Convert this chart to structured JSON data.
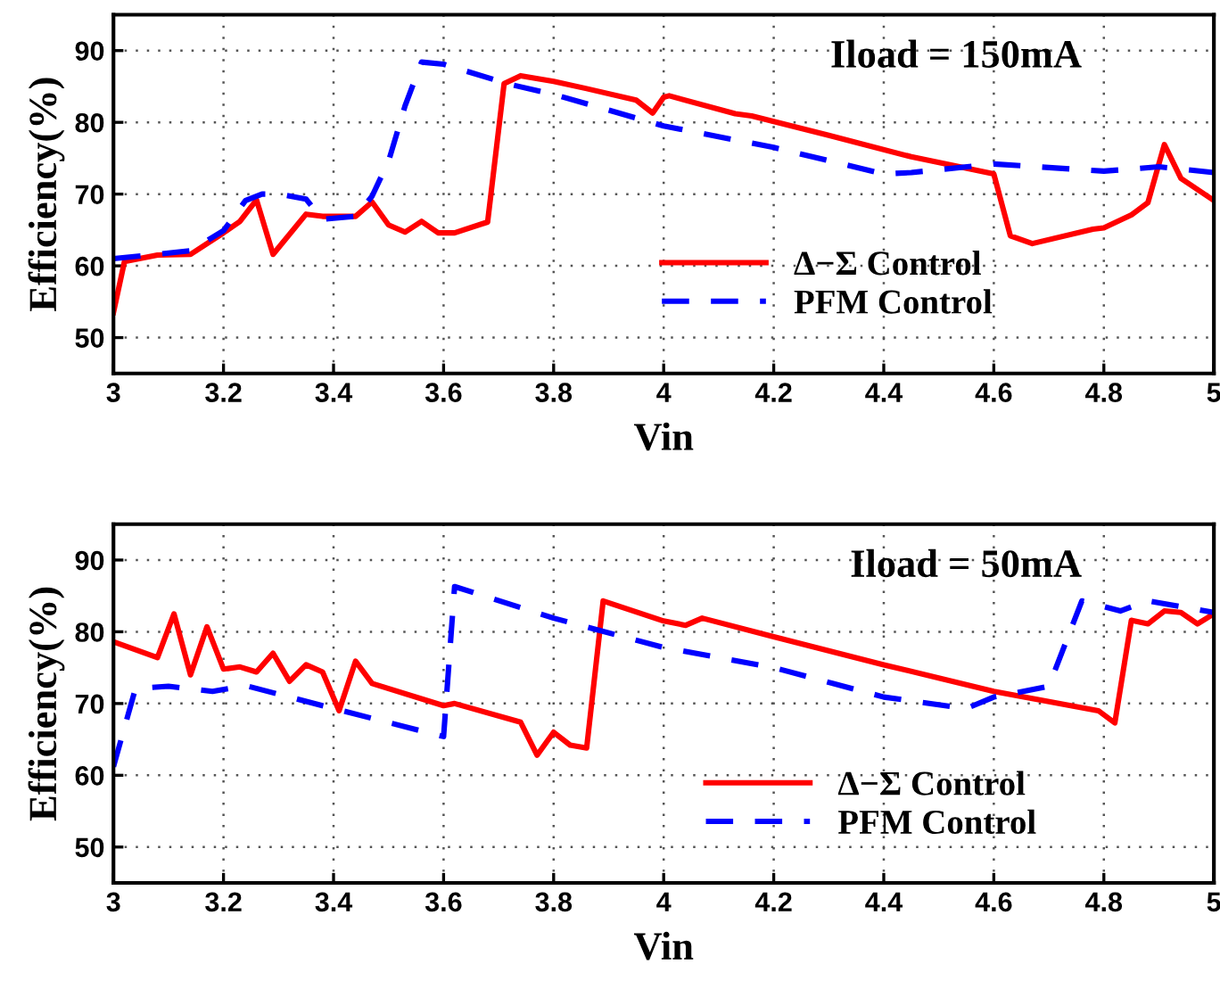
{
  "chart_data": [
    {
      "type": "line",
      "xlabel": "Vin",
      "ylabel": "Efficiency(%)",
      "annotations": [
        "Iload = 150mA"
      ],
      "xlim": [
        3,
        5
      ],
      "ylim": [
        45,
        95
      ],
      "xticks": [
        3,
        3.2,
        3.4,
        3.6,
        3.8,
        4,
        4.2,
        4.4,
        4.6,
        4.8,
        5
      ],
      "yticks": [
        50,
        60,
        70,
        80,
        90
      ],
      "grid": true,
      "legend": "lower right",
      "series": [
        {
          "name": "Δ−Σ Control",
          "color": "#ff0000",
          "line_style": "solid",
          "x": [
            3.0,
            3.02,
            3.08,
            3.14,
            3.2,
            3.23,
            3.26,
            3.29,
            3.35,
            3.38,
            3.44,
            3.47,
            3.5,
            3.53,
            3.56,
            3.59,
            3.62,
            3.68,
            3.71,
            3.74,
            3.8,
            3.86,
            3.95,
            3.98,
            4.0,
            4.01,
            4.13,
            4.16,
            4.3,
            4.45,
            4.6,
            4.63,
            4.67,
            4.78,
            4.8,
            4.85,
            4.88,
            4.91,
            4.94,
            5.0
          ],
          "values": [
            53.5,
            60.6,
            61.5,
            61.6,
            64.6,
            66.2,
            69.2,
            61.6,
            67.2,
            66.9,
            66.9,
            68.9,
            65.7,
            64.7,
            66.2,
            64.6,
            64.6,
            66.1,
            85.4,
            86.5,
            85.7,
            84.7,
            83.1,
            81.3,
            83.5,
            83.7,
            81.2,
            80.9,
            78.2,
            75.2,
            72.8,
            64.2,
            63.1,
            65.1,
            65.3,
            67.1,
            68.8,
            76.9,
            72.2,
            69.1
          ]
        },
        {
          "name": "PFM Control",
          "color": "#0000ff",
          "line_style": "dashed",
          "x": [
            3.0,
            3.14,
            3.2,
            3.24,
            3.27,
            3.3,
            3.35,
            3.38,
            3.44,
            3.47,
            3.5,
            3.53,
            3.56,
            3.6,
            3.72,
            3.8,
            4.0,
            4.2,
            4.4,
            4.45,
            4.6,
            4.8,
            4.9,
            5.0
          ],
          "values": [
            61.0,
            62.1,
            64.9,
            69.1,
            70.0,
            70.0,
            69.3,
            66.5,
            66.9,
            69.7,
            74.6,
            82.3,
            88.4,
            88.1,
            85.3,
            83.9,
            79.5,
            76.5,
            72.8,
            73.0,
            74.2,
            73.2,
            73.8,
            73.0
          ]
        }
      ]
    },
    {
      "type": "line",
      "xlabel": "Vin",
      "ylabel": "Efficiency(%)",
      "annotations": [
        "Iload = 50mA"
      ],
      "xlim": [
        3,
        5
      ],
      "ylim": [
        45,
        95
      ],
      "xticks": [
        3,
        3.2,
        3.4,
        3.6,
        3.8,
        4,
        4.2,
        4.4,
        4.6,
        4.8,
        5
      ],
      "yticks": [
        50,
        60,
        70,
        80,
        90
      ],
      "grid": true,
      "legend": "bottom right",
      "series": [
        {
          "name": "Δ−Σ Control",
          "color": "#ff0000",
          "line_style": "solid",
          "x": [
            3.0,
            3.08,
            3.11,
            3.14,
            3.17,
            3.2,
            3.23,
            3.26,
            3.29,
            3.32,
            3.35,
            3.38,
            3.41,
            3.44,
            3.47,
            3.6,
            3.62,
            3.74,
            3.77,
            3.8,
            3.83,
            3.86,
            3.89,
            4.0,
            4.04,
            4.07,
            4.2,
            4.4,
            4.6,
            4.79,
            4.82,
            4.85,
            4.88,
            4.91,
            4.94,
            4.97,
            5.0
          ],
          "values": [
            78.6,
            76.4,
            82.5,
            74.0,
            80.7,
            74.8,
            75.1,
            74.4,
            77.0,
            73.1,
            75.4,
            74.4,
            69.0,
            75.9,
            72.8,
            69.7,
            70.0,
            67.4,
            62.8,
            66.0,
            64.2,
            63.8,
            84.3,
            81.5,
            80.9,
            81.9,
            79.3,
            75.4,
            71.7,
            69.0,
            67.3,
            81.6,
            81.1,
            82.9,
            82.7,
            81.1,
            82.5
          ]
        },
        {
          "name": "PFM Control",
          "color": "#0000ff",
          "line_style": "dashed",
          "x": [
            3.0,
            3.04,
            3.1,
            3.18,
            3.24,
            3.4,
            3.6,
            3.62,
            3.8,
            4.0,
            4.2,
            4.4,
            4.55,
            4.6,
            4.7,
            4.76,
            4.83,
            4.88,
            5.0
          ],
          "values": [
            61.2,
            72.1,
            72.4,
            71.7,
            72.5,
            69.3,
            65.4,
            86.3,
            81.9,
            77.8,
            75.0,
            70.9,
            69.3,
            70.9,
            72.4,
            84.3,
            82.9,
            84.3,
            82.7
          ]
        }
      ]
    }
  ]
}
